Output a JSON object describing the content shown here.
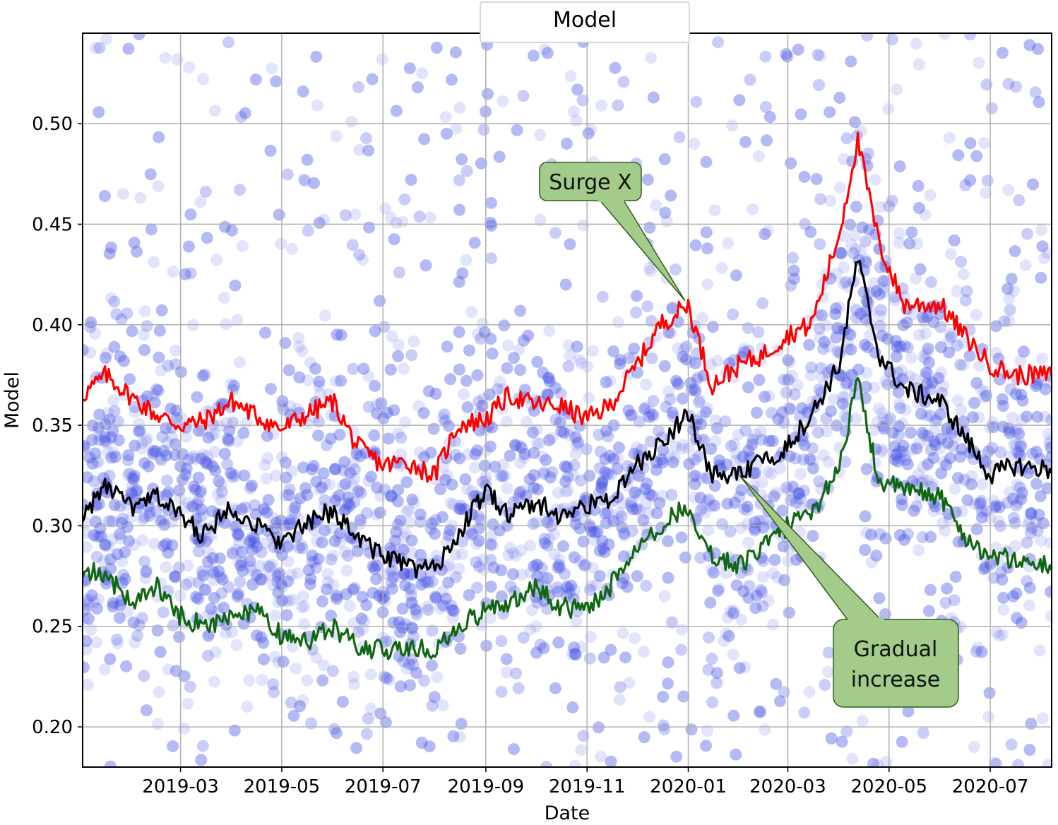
{
  "chart_data": {
    "type": "scatter",
    "title": "Model",
    "xlabel": "Date",
    "ylabel": "Model",
    "x_range": [
      "2019-01-01",
      "2020-08-07"
    ],
    "ylim": [
      0.18,
      0.545
    ],
    "grid": true,
    "x_ticks": [
      "2019-03",
      "2019-05",
      "2019-07",
      "2019-09",
      "2019-11",
      "2020-01",
      "2020-03",
      "2020-05",
      "2020-07"
    ],
    "y_ticks": [
      "0.20",
      "0.25",
      "0.30",
      "0.35",
      "0.40",
      "0.45",
      "0.50"
    ],
    "scatter_color": "#4a5ae8",
    "series": [
      {
        "color": "#ff0000",
        "x": [
          "2019-01-01",
          "2019-01-15",
          "2019-02-01",
          "2019-02-15",
          "2019-03-01",
          "2019-03-15",
          "2019-04-01",
          "2019-04-15",
          "2019-05-01",
          "2019-05-15",
          "2019-06-01",
          "2019-06-15",
          "2019-07-01",
          "2019-07-15",
          "2019-08-01",
          "2019-08-15",
          "2019-09-01",
          "2019-09-15",
          "2019-10-01",
          "2019-10-15",
          "2019-11-01",
          "2019-11-15",
          "2019-12-01",
          "2019-12-15",
          "2020-01-01",
          "2020-01-15",
          "2020-02-01",
          "2020-02-15",
          "2020-03-01",
          "2020-03-15",
          "2020-04-01",
          "2020-04-12",
          "2020-04-25",
          "2020-05-10",
          "2020-06-01",
          "2020-06-15",
          "2020-07-01",
          "2020-07-15",
          "2020-08-05"
        ],
        "values": [
          0.365,
          0.375,
          0.363,
          0.355,
          0.35,
          0.352,
          0.362,
          0.355,
          0.348,
          0.355,
          0.362,
          0.34,
          0.33,
          0.332,
          0.325,
          0.35,
          0.353,
          0.365,
          0.36,
          0.36,
          0.353,
          0.36,
          0.38,
          0.4,
          0.41,
          0.37,
          0.38,
          0.385,
          0.395,
          0.4,
          0.445,
          0.492,
          0.44,
          0.41,
          0.41,
          0.395,
          0.38,
          0.375,
          0.375
        ]
      },
      {
        "color": "#000000",
        "x": [
          "2019-01-01",
          "2019-01-15",
          "2019-02-01",
          "2019-02-15",
          "2019-03-01",
          "2019-03-15",
          "2019-04-01",
          "2019-04-15",
          "2019-05-01",
          "2019-05-15",
          "2019-06-01",
          "2019-06-15",
          "2019-07-01",
          "2019-07-15",
          "2019-08-01",
          "2019-08-15",
          "2019-09-01",
          "2019-09-15",
          "2019-10-01",
          "2019-10-15",
          "2019-11-01",
          "2019-11-15",
          "2019-12-01",
          "2019-12-15",
          "2020-01-01",
          "2020-01-15",
          "2020-02-01",
          "2020-02-15",
          "2020-03-01",
          "2020-03-15",
          "2020-04-01",
          "2020-04-12",
          "2020-04-25",
          "2020-05-10",
          "2020-06-01",
          "2020-06-15",
          "2020-07-01",
          "2020-07-15",
          "2020-08-05"
        ],
        "values": [
          0.305,
          0.32,
          0.308,
          0.315,
          0.305,
          0.295,
          0.31,
          0.3,
          0.292,
          0.3,
          0.308,
          0.295,
          0.285,
          0.28,
          0.278,
          0.295,
          0.318,
          0.305,
          0.312,
          0.305,
          0.31,
          0.313,
          0.33,
          0.34,
          0.357,
          0.325,
          0.325,
          0.332,
          0.34,
          0.355,
          0.38,
          0.433,
          0.385,
          0.368,
          0.362,
          0.345,
          0.325,
          0.33,
          0.328
        ]
      },
      {
        "color": "#116611",
        "x": [
          "2019-01-01",
          "2019-01-15",
          "2019-02-01",
          "2019-02-15",
          "2019-03-01",
          "2019-03-15",
          "2019-04-01",
          "2019-04-15",
          "2019-05-01",
          "2019-05-15",
          "2019-06-01",
          "2019-06-15",
          "2019-07-01",
          "2019-07-15",
          "2019-08-01",
          "2019-08-15",
          "2019-09-01",
          "2019-09-15",
          "2019-10-01",
          "2019-10-15",
          "2019-11-01",
          "2019-11-15",
          "2019-12-01",
          "2019-12-15",
          "2020-01-01",
          "2020-01-15",
          "2020-02-01",
          "2020-02-15",
          "2020-03-01",
          "2020-03-15",
          "2020-04-01",
          "2020-04-12",
          "2020-04-25",
          "2020-05-10",
          "2020-06-01",
          "2020-06-15",
          "2020-07-01",
          "2020-07-15",
          "2020-08-05"
        ],
        "values": [
          0.278,
          0.275,
          0.262,
          0.27,
          0.255,
          0.25,
          0.255,
          0.258,
          0.245,
          0.242,
          0.25,
          0.24,
          0.238,
          0.24,
          0.237,
          0.25,
          0.258,
          0.262,
          0.27,
          0.26,
          0.258,
          0.27,
          0.29,
          0.3,
          0.31,
          0.285,
          0.28,
          0.29,
          0.3,
          0.305,
          0.33,
          0.372,
          0.322,
          0.318,
          0.315,
          0.295,
          0.285,
          0.283,
          0.28
        ]
      }
    ],
    "annotations": [
      {
        "text": "Surge X",
        "x": "2019-12-30",
        "y": 0.412
      },
      {
        "text": "Gradual increase",
        "lines": [
          "Gradual",
          "increase"
        ],
        "x": "2020-02-01",
        "y": 0.325
      }
    ]
  }
}
